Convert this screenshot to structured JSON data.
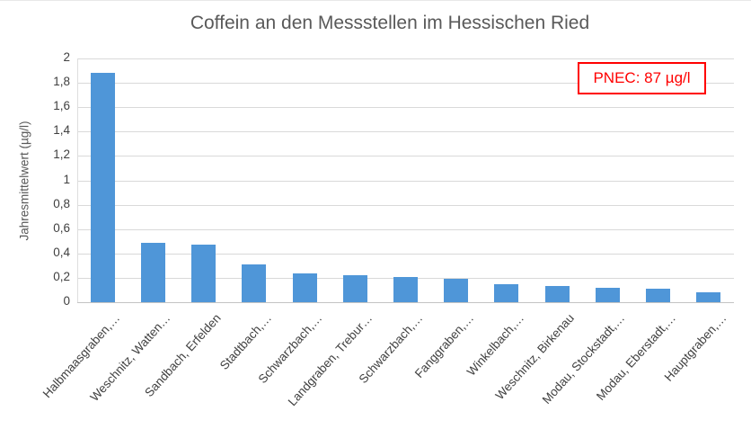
{
  "title": "Coffein an den Messstellen im Hessischen Ried",
  "annotation": {
    "text": "PNEC: 87 µg/l",
    "text_color": "#FF0000",
    "border_color": "#FF0000"
  },
  "y_axis": {
    "label": "Jahresmittelwert (µg/l)",
    "tick_labels": [
      "2",
      "1,8",
      "1,6",
      "1,4",
      "1,2",
      "1",
      "0,8",
      "0,6",
      "0,4",
      "0,2",
      "0"
    ]
  },
  "chart_data": {
    "type": "bar",
    "title": "Coffein an den Messstellen im Hessischen Ried",
    "categories": [
      "Halbmaasgraben,…",
      "Weschnitz, Watten…",
      "Sandbach, Erfelden",
      "Stadtbach,…",
      "Schwarzbach,…",
      "Landgraben, Trebur…",
      "Schwarzbach,…",
      "Fanggraben,…",
      "Winkelbach,…",
      "Weschnitz, Birkenau",
      "Modau, Stockstadt,…",
      "Modau, Eberstadt,…",
      "Hauptgraben,…"
    ],
    "values": [
      1.88,
      0.49,
      0.47,
      0.31,
      0.24,
      0.22,
      0.21,
      0.19,
      0.15,
      0.13,
      0.115,
      0.11,
      0.08
    ],
    "xlabel": "",
    "ylabel": "Jahresmittelwert (µg/l)",
    "ylim": [
      0,
      2
    ],
    "ytick_step": 0.2,
    "grid": true,
    "legend": false,
    "bar_color": "#4F96D8",
    "annotation": "PNEC: 87 µg/l"
  }
}
